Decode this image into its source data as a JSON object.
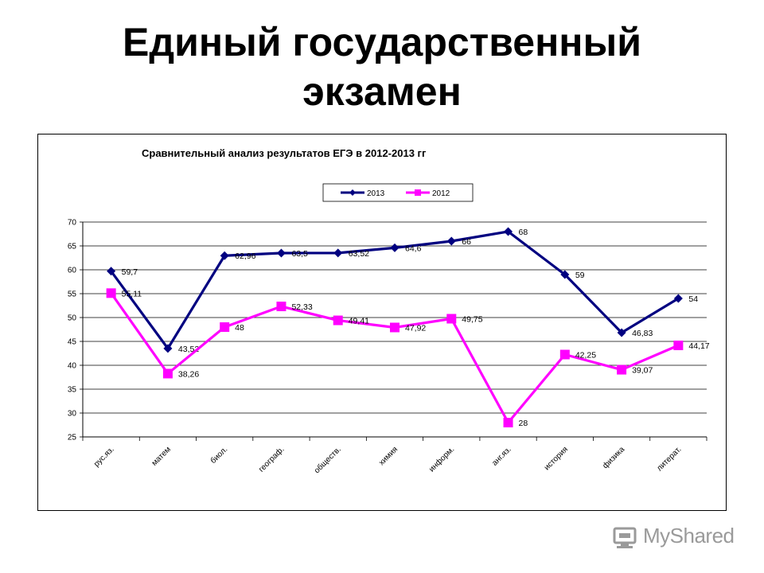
{
  "slide": {
    "title_line1": "Единый государственный",
    "title_line2": "экзамен"
  },
  "logo": {
    "text": "MyShared"
  },
  "chart_data": {
    "type": "line",
    "title": "Сравнительный анализ результатов ЕГЭ  в 2012-2013 гг",
    "categories": [
      "рус.яз.",
      "матем",
      "биол.",
      "географ.",
      "обществ.",
      "химия",
      "информ.",
      "анг.яз.",
      "история",
      "физика",
      "литерат."
    ],
    "series": [
      {
        "name": "2013",
        "color": "#000080",
        "marker": "diamond",
        "values": [
          59.7,
          43.52,
          62.96,
          63.5,
          63.52,
          64.6,
          66,
          68,
          59,
          46.83,
          54
        ],
        "labels": [
          "59,7",
          "43,52",
          "62,96",
          "63,5",
          "63,52",
          "64,6",
          "66",
          "68",
          "59",
          "46,83",
          "54"
        ]
      },
      {
        "name": "2012",
        "color": "#ff00ff",
        "marker": "square",
        "values": [
          55.11,
          38.26,
          48,
          52.33,
          49.41,
          47.92,
          49.75,
          28,
          42.25,
          39.07,
          44.17
        ],
        "labels": [
          "55,11",
          "38,26",
          "48",
          "52,33",
          "49,41",
          "47,92",
          "49,75",
          "28",
          "42,25",
          "39,07",
          "44,17"
        ]
      }
    ],
    "ylim": [
      25,
      70
    ],
    "yticks": [
      25,
      30,
      35,
      40,
      45,
      50,
      55,
      60,
      65,
      70
    ],
    "grid": true,
    "legend": "top"
  }
}
